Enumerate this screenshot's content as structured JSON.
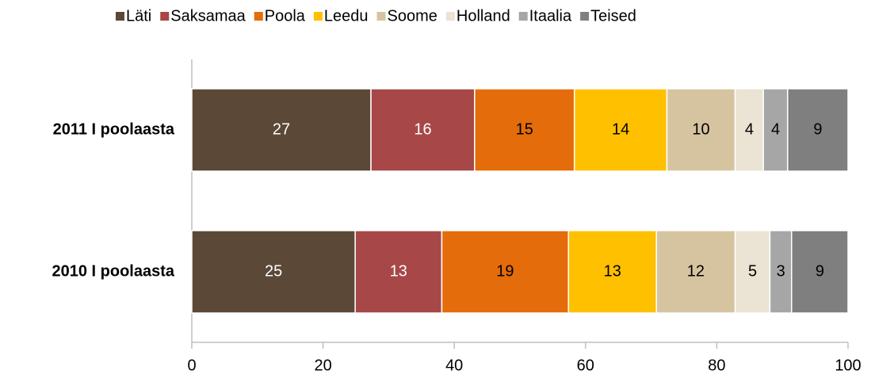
{
  "chart_data": {
    "type": "stacked-bar-horizontal",
    "categories": [
      "2011 I poolaasta",
      "2010 I poolaasta"
    ],
    "series": [
      {
        "name": "Läti",
        "color": "#5c4837",
        "values": [
          27.3,
          24.9
        ],
        "value_labels": [
          "27",
          "25"
        ]
      },
      {
        "name": "Saksamaa",
        "color": "#a84747",
        "values": [
          15.8,
          13.2
        ],
        "value_labels": [
          "16",
          "13"
        ]
      },
      {
        "name": "Poola",
        "color": "#e46c0a",
        "values": [
          15.2,
          19.3
        ],
        "value_labels": [
          "15",
          "19"
        ]
      },
      {
        "name": "Leedu",
        "color": "#ffc000",
        "values": [
          14.1,
          13.4
        ],
        "value_labels": [
          "14",
          "13"
        ]
      },
      {
        "name": "Soome",
        "color": "#d6c4a0",
        "values": [
          10.4,
          12.0
        ],
        "value_labels": [
          "10",
          "12"
        ]
      },
      {
        "name": "Holland",
        "color": "#ebe3d3",
        "values": [
          4.3,
          5.3
        ],
        "value_labels": [
          "4",
          "5"
        ]
      },
      {
        "name": "Itaalia",
        "color": "#a6a6a6",
        "values": [
          3.7,
          3.3
        ],
        "value_labels": [
          "4",
          "3"
        ]
      },
      {
        "name": "Teised",
        "color": "#7f7f7f",
        "values": [
          9.2,
          8.6
        ],
        "value_labels": [
          "9",
          "9"
        ]
      }
    ],
    "xlim": [
      0,
      100
    ],
    "xticks": [
      0,
      20,
      40,
      60,
      80,
      100
    ],
    "grid": false,
    "legend": "top"
  }
}
